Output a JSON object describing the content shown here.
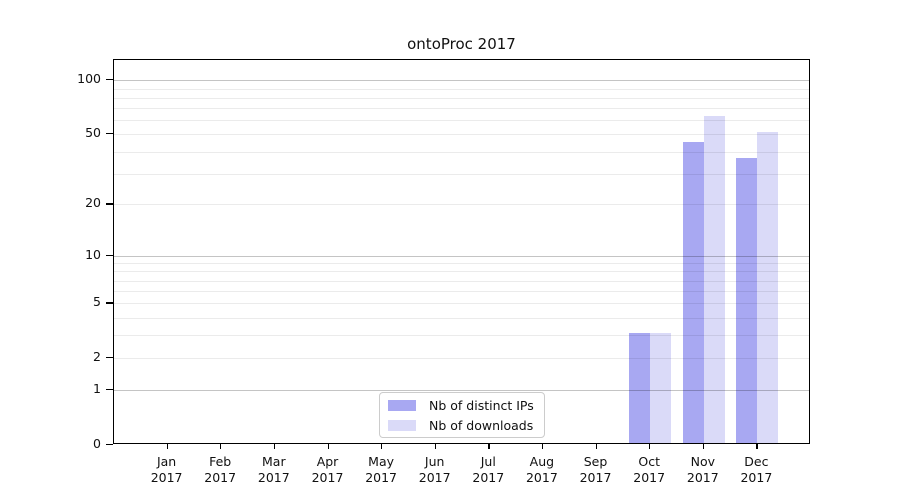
{
  "title": "ontoProc 2017",
  "chart_data": {
    "type": "bar",
    "title": "ontoProc 2017",
    "x_categories": [
      {
        "month": "Jan",
        "year": "2017"
      },
      {
        "month": "Feb",
        "year": "2017"
      },
      {
        "month": "Mar",
        "year": "2017"
      },
      {
        "month": "Apr",
        "year": "2017"
      },
      {
        "month": "May",
        "year": "2017"
      },
      {
        "month": "Jun",
        "year": "2017"
      },
      {
        "month": "Jul",
        "year": "2017"
      },
      {
        "month": "Aug",
        "year": "2017"
      },
      {
        "month": "Sep",
        "year": "2017"
      },
      {
        "month": "Oct",
        "year": "2017"
      },
      {
        "month": "Nov",
        "year": "2017"
      },
      {
        "month": "Dec",
        "year": "2017"
      }
    ],
    "series": [
      {
        "name": "Nb of distinct IPs",
        "color": "#a8a8f2",
        "values": [
          0,
          0,
          0,
          0,
          0,
          0,
          0,
          0,
          0,
          3,
          44,
          36
        ]
      },
      {
        "name": "Nb of downloads",
        "color": "#dadaf8",
        "values": [
          0,
          0,
          0,
          0,
          0,
          0,
          0,
          0,
          0,
          3,
          62,
          50
        ]
      }
    ],
    "y_scale": "log10(1+value)",
    "y_ticks": [
      0,
      1,
      2,
      5,
      10,
      20,
      50,
      100
    ],
    "grid_major_values": [
      1,
      10,
      100
    ],
    "grid_minor_values": [
      2,
      3,
      4,
      5,
      6,
      7,
      8,
      9,
      20,
      30,
      40,
      50,
      60,
      70,
      80,
      90
    ],
    "ylim": [
      0,
      130
    ],
    "grid": "on",
    "legend_position": "lower center",
    "axis_color": "#000000"
  }
}
